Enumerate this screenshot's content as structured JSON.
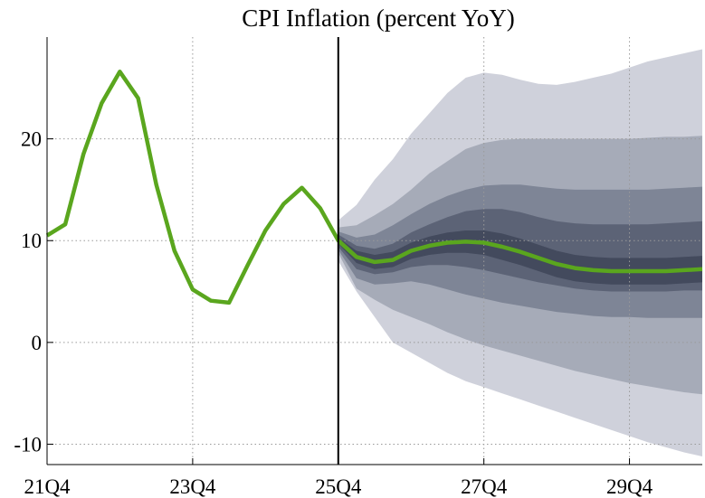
{
  "chart_data": {
    "type": "area",
    "title": "CPI Inflation (percent YoY)",
    "xlabel": "",
    "ylabel": "",
    "x_range": [
      0,
      36
    ],
    "ylim": [
      -12,
      30
    ],
    "grid": "dotted",
    "x_ticks": [
      {
        "x": 0,
        "label": "21Q4"
      },
      {
        "x": 8,
        "label": "23Q4"
      },
      {
        "x": 16,
        "label": "25Q4"
      },
      {
        "x": 24,
        "label": "27Q4"
      },
      {
        "x": 32,
        "label": "29Q4"
      }
    ],
    "y_ticks": [
      {
        "y": -10,
        "label": "-10"
      },
      {
        "y": 0,
        "label": "0"
      },
      {
        "y": 10,
        "label": "10"
      },
      {
        "y": 20,
        "label": "20"
      }
    ],
    "forecast_start_x": 16,
    "history": {
      "name": "CPI inflation",
      "x": [
        0,
        1,
        2,
        3,
        4,
        5,
        6,
        7,
        8,
        9,
        10,
        11,
        12,
        13,
        14,
        15,
        16
      ],
      "values": [
        10.5,
        11.6,
        18.5,
        23.5,
        26.6,
        24.0,
        15.5,
        9.0,
        5.2,
        4.1,
        3.9,
        7.5,
        11.0,
        13.6,
        15.2,
        13.2,
        10.0
      ]
    },
    "forecast_x": [
      16,
      17,
      18,
      19,
      20,
      21,
      22,
      23,
      24,
      25,
      26,
      27,
      28,
      29,
      30,
      31,
      32,
      33,
      34,
      35,
      36
    ],
    "median": [
      10.0,
      8.4,
      7.9,
      8.1,
      9.0,
      9.5,
      9.8,
      9.9,
      9.8,
      9.4,
      8.9,
      8.3,
      7.7,
      7.3,
      7.1,
      7.0,
      7.0,
      7.0,
      7.0,
      7.1,
      7.2
    ],
    "fan_bands": [
      {
        "name": "outer band",
        "color": "#cfd1db",
        "upper": [
          12.0,
          13.5,
          16.0,
          18.0,
          20.5,
          22.5,
          24.5,
          26.0,
          26.5,
          26.3,
          25.8,
          25.4,
          25.3,
          25.6,
          26.0,
          26.4,
          27.0,
          27.6,
          28.0,
          28.4,
          28.8
        ],
        "lower": [
          8.0,
          5.0,
          2.5,
          0.0,
          -1.0,
          -2.0,
          -3.0,
          -3.8,
          -4.4,
          -5.0,
          -5.6,
          -6.2,
          -6.8,
          -7.4,
          -8.0,
          -8.6,
          -9.2,
          -9.8,
          -10.3,
          -10.8,
          -11.2
        ]
      },
      {
        "name": "band 2",
        "color": "#a6abb8",
        "upper": [
          11.3,
          11.5,
          12.5,
          13.6,
          15.0,
          16.6,
          17.8,
          19.0,
          19.6,
          19.9,
          20.0,
          20.0,
          20.0,
          20.0,
          20.0,
          20.0,
          20.0,
          20.1,
          20.2,
          20.2,
          20.3
        ],
        "lower": [
          8.8,
          5.3,
          4.2,
          3.2,
          2.5,
          1.8,
          1.0,
          0.3,
          -0.3,
          -0.8,
          -1.3,
          -1.8,
          -2.3,
          -2.8,
          -3.2,
          -3.6,
          -4.0,
          -4.3,
          -4.6,
          -4.9,
          -5.1
        ]
      },
      {
        "name": "band 3",
        "color": "#7e8596",
        "upper": [
          10.9,
          10.3,
          10.6,
          11.5,
          12.6,
          13.6,
          14.4,
          15.0,
          15.4,
          15.5,
          15.5,
          15.3,
          15.1,
          15.0,
          15.0,
          15.0,
          15.0,
          15.0,
          15.1,
          15.2,
          15.3
        ],
        "lower": [
          9.1,
          6.3,
          5.7,
          5.8,
          6.0,
          5.7,
          5.2,
          4.7,
          4.3,
          3.9,
          3.6,
          3.3,
          3.0,
          2.8,
          2.6,
          2.5,
          2.5,
          2.4,
          2.4,
          2.4,
          2.4
        ]
      },
      {
        "name": "band 4",
        "color": "#5c6376",
        "upper": [
          10.6,
          9.5,
          9.2,
          9.7,
          10.8,
          11.6,
          12.3,
          12.9,
          13.1,
          13.1,
          12.8,
          12.3,
          11.9,
          11.7,
          11.6,
          11.6,
          11.6,
          11.6,
          11.7,
          11.8,
          11.9
        ],
        "lower": [
          9.4,
          7.2,
          6.7,
          6.9,
          7.4,
          7.6,
          7.6,
          7.4,
          7.1,
          6.7,
          6.3,
          5.9,
          5.6,
          5.3,
          5.1,
          5.0,
          5.0,
          5.0,
          5.0,
          5.1,
          5.1
        ]
      },
      {
        "name": "inner band",
        "color": "#434a5d",
        "upper": [
          10.3,
          9.0,
          8.6,
          8.9,
          9.8,
          10.4,
          10.8,
          11.0,
          11.0,
          10.7,
          10.2,
          9.6,
          9.0,
          8.6,
          8.4,
          8.3,
          8.3,
          8.3,
          8.3,
          8.4,
          8.5
        ],
        "lower": [
          9.7,
          7.8,
          7.2,
          7.4,
          8.2,
          8.6,
          8.8,
          8.8,
          8.6,
          8.1,
          7.6,
          7.0,
          6.4,
          6.0,
          5.8,
          5.7,
          5.7,
          5.7,
          5.7,
          5.8,
          5.9
        ]
      }
    ],
    "line_color": "#5aa61e"
  }
}
